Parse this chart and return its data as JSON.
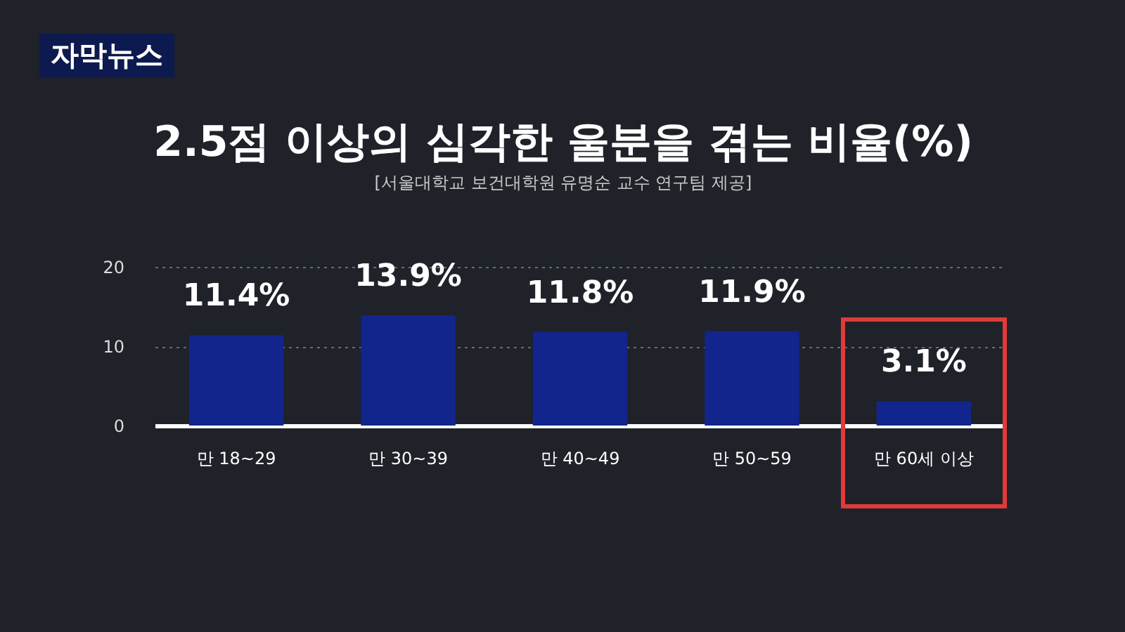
{
  "chart_data": {
    "type": "bar",
    "title": "2.5점 이상의 심각한 울분을 겪는 비율(%)",
    "subtitle": "[서울대학교 보건대학원 유명순 교수 연구팀 제공]",
    "annotations": [
      "자막뉴스"
    ],
    "categories": [
      "만 18~29",
      "만 30~39",
      "만 40~49",
      "만 50~59",
      "만 60세 이상"
    ],
    "values": [
      11.4,
      13.9,
      11.8,
      11.9,
      3.1
    ],
    "value_labels": [
      "11.4%",
      "13.9%",
      "11.8%",
      "11.9%",
      "3.1%"
    ],
    "color": "#12258c",
    "ylim": [
      0,
      20
    ],
    "yticks": [
      0,
      10,
      20
    ],
    "grid": "y"
  }
}
